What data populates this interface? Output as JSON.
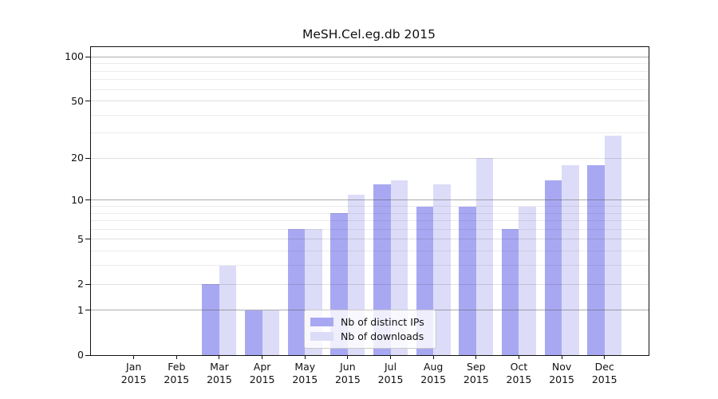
{
  "title": "MeSH.Cel.eg.db 2015",
  "chart_data": {
    "type": "bar",
    "title": "MeSH.Cel.eg.db 2015",
    "categories": [
      "Jan 2015",
      "Feb 2015",
      "Mar 2015",
      "Apr 2015",
      "May 2015",
      "Jun 2015",
      "Jul 2015",
      "Aug 2015",
      "Sep 2015",
      "Oct 2015",
      "Nov 2015",
      "Dec 2015"
    ],
    "series": [
      {
        "name": "Nb of distinct IPs",
        "color": "#a8a8f2",
        "values": [
          0,
          0,
          2,
          1,
          6,
          8,
          13,
          9,
          9,
          6,
          14,
          18
        ]
      },
      {
        "name": "Nb of downloads",
        "color": "#dcdcf8",
        "values": [
          0,
          0,
          3,
          1,
          6,
          11,
          14,
          13,
          20,
          9,
          18,
          29
        ]
      }
    ],
    "xlabel": "",
    "ylabel": "",
    "yscale": "log1p",
    "ylim": [
      0,
      115
    ],
    "yticks": [
      0,
      1,
      2,
      5,
      10,
      20,
      50,
      100
    ],
    "grid": {
      "on": true,
      "major_lines": [
        1,
        10,
        100
      ],
      "labeled_minor_lines": [
        2,
        5,
        20,
        50
      ],
      "minor_lines": [
        3,
        4,
        6,
        7,
        8,
        9,
        30,
        40,
        60,
        70,
        80,
        90
      ]
    },
    "legend": {
      "position": "inside-bottom-center",
      "items": [
        "Nb of distinct IPs",
        "Nb of downloads"
      ]
    }
  },
  "colors": {
    "bar_distinct_ips": "#a8a8f2",
    "bar_downloads": "#dcdcf8",
    "major_grid": "#ababab",
    "labeled_minor_grid": "#e0e0e0",
    "minor_grid": "#ededed",
    "axis": "#111111",
    "legend_border": "#c9c9c9",
    "background": "#ffffff"
  }
}
